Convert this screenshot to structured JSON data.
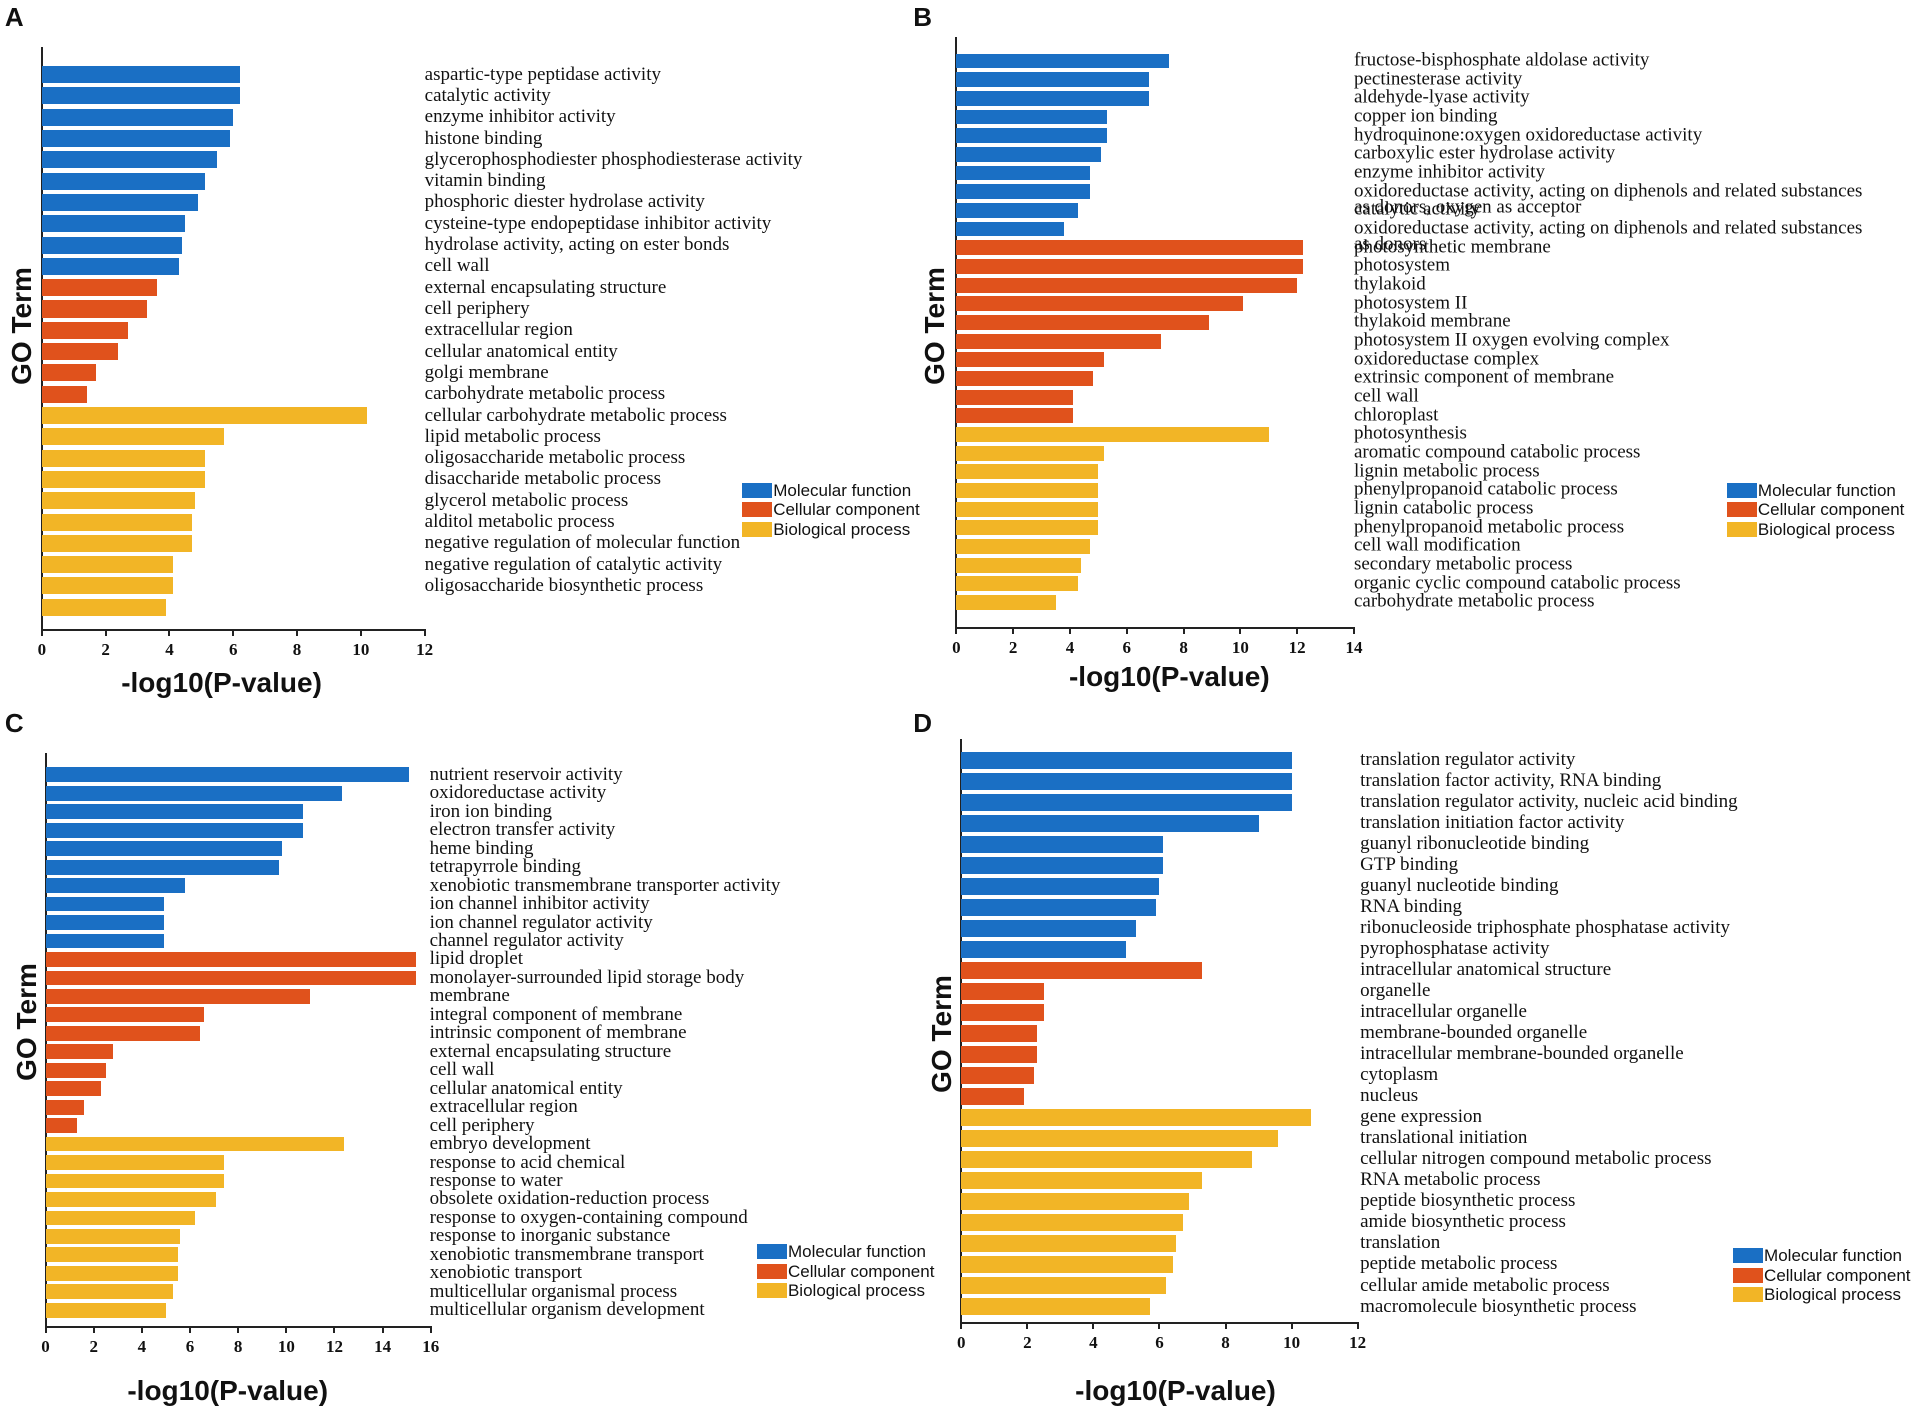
{
  "chart_data": [
    {
      "type": "bar",
      "panel": "A",
      "ylabel": "GO Term",
      "xlabel": "-log10(P-value)",
      "xlim": [
        0,
        12
      ],
      "xticks": [
        0,
        2,
        4,
        6,
        8,
        10,
        12
      ],
      "series": [
        {
          "name": "Molecular function",
          "color": "#1a6fc4",
          "categories": [
            "aspartic-type peptidase activity",
            "catalytic activity",
            "enzyme inhibitor activity",
            "histone binding",
            "glycerophosphodiester phosphodiesterase activity",
            "vitamin binding",
            "phosphoric diester hydrolase activity",
            "cysteine-type endopeptidase inhibitor activity",
            "hydrolase activity, acting on ester bonds",
            "cell wall"
          ],
          "values": [
            6.2,
            6.2,
            6.0,
            5.9,
            5.5,
            5.1,
            4.9,
            4.5,
            4.4,
            4.3
          ]
        },
        {
          "name": "Cellular component",
          "color": "#e0521c",
          "categories": [
            "external encapsulating structure",
            "cell periphery",
            "extracellular region",
            "cellular anatomical entity",
            "golgi membrane",
            "carbohydrate metabolic process"
          ],
          "values": [
            3.6,
            3.3,
            2.7,
            2.4,
            1.7,
            1.4
          ]
        },
        {
          "name": "Biological process",
          "color": "#f2b526",
          "categories": [
            "cellular carbohydrate metabolic process",
            "lipid metabolic process",
            "oligosaccharide metabolic process",
            "disaccharide metabolic process",
            "glycerol metabolic process",
            "alditol metabolic process",
            "negative regulation of molecular function",
            "negative regulation of catalytic activity",
            "oligosaccharide biosynthetic process",
            null
          ],
          "values": [
            10.2,
            5.7,
            5.1,
            5.1,
            4.8,
            4.7,
            4.7,
            4.1,
            4.1,
            3.9
          ]
        }
      ]
    },
    {
      "type": "bar",
      "panel": "B",
      "ylabel": "GO Term",
      "xlabel": "-log10(P-value)",
      "xlim": [
        0,
        14
      ],
      "xticks": [
        0,
        2,
        4,
        6,
        8,
        10,
        12,
        14
      ],
      "series": [
        {
          "name": "Molecular function",
          "color": "#1a6fc4",
          "categories": [
            "fructose-bisphosphate aldolase activity",
            "pectinesterase activity",
            "aldehyde-lyase activity",
            "copper ion binding",
            "hydroquinone:oxygen oxidoreductase activity",
            "carboxylic ester hydrolase activity",
            "enzyme inhibitor activity",
            "oxidoreductase activity, acting on diphenols and related substances as donors, oxygen as acceptor",
            "catalytic activity",
            "oxidoreductase activity, acting on diphenols and related substances as donors"
          ],
          "values": [
            7.5,
            6.8,
            6.8,
            5.3,
            5.3,
            5.1,
            4.7,
            4.7,
            4.3,
            3.8
          ]
        },
        {
          "name": "Cellular component",
          "color": "#e0521c",
          "categories": [
            "photosynthetic membrane",
            "photosystem",
            "thylakoid",
            "photosystem II",
            "thylakoid membrane",
            "photosystem II oxygen evolving complex",
            "oxidoreductase complex",
            "extrinsic component of membrane",
            "cell wall",
            "chloroplast"
          ],
          "values": [
            12.2,
            12.2,
            12.0,
            10.1,
            8.9,
            7.2,
            5.2,
            4.8,
            4.1,
            4.1
          ]
        },
        {
          "name": "Biological process",
          "color": "#f2b526",
          "categories": [
            "photosynthesis",
            "aromatic compound catabolic process",
            "lignin metabolic process",
            "phenylpropanoid catabolic process",
            "lignin catabolic process",
            "phenylpropanoid metabolic process",
            "cell wall modification",
            "secondary metabolic process",
            "organic cyclic compound catabolic process",
            "carbohydrate metabolic process"
          ],
          "values": [
            11.0,
            5.2,
            5.0,
            5.0,
            5.0,
            5.0,
            4.7,
            4.4,
            4.3,
            3.5
          ]
        }
      ]
    },
    {
      "type": "bar",
      "panel": "C",
      "ylabel": "GO Term",
      "xlabel": "-log10(P-value)",
      "xlim": [
        0,
        16
      ],
      "xticks": [
        0,
        2,
        4,
        6,
        8,
        10,
        12,
        14,
        16
      ],
      "series": [
        {
          "name": "Molecular function",
          "color": "#1a6fc4",
          "categories": [
            "nutrient reservoir activity",
            "oxidoreductase activity",
            "iron ion binding",
            "electron transfer activity",
            "heme binding",
            "tetrapyrrole binding",
            "xenobiotic transmembrane transporter activity",
            "ion channel inhibitor activity",
            "ion channel regulator activity",
            "channel regulator activity"
          ],
          "values": [
            15.1,
            12.3,
            10.7,
            10.7,
            9.8,
            9.7,
            5.8,
            4.9,
            4.9,
            4.9
          ]
        },
        {
          "name": "Cellular component",
          "color": "#e0521c",
          "categories": [
            "lipid droplet",
            "monolayer-surrounded lipid storage body",
            "membrane",
            "integral component of membrane",
            "intrinsic component of membrane",
            "external encapsulating structure",
            "cell wall",
            "cellular anatomical entity",
            "extracellular region",
            "cell periphery"
          ],
          "values": [
            15.4,
            15.4,
            11.0,
            6.6,
            6.4,
            2.8,
            2.5,
            2.3,
            1.6,
            1.3
          ]
        },
        {
          "name": "Biological process",
          "color": "#f2b526",
          "categories": [
            "embryo development",
            "response to acid chemical",
            "response to water",
            "obsolete oxidation-reduction process",
            "response to oxygen-containing compound",
            "response to inorganic substance",
            "xenobiotic transmembrane transport",
            "xenobiotic transport",
            "multicellular organismal process",
            "multicellular organism development"
          ],
          "values": [
            12.4,
            7.4,
            7.4,
            7.1,
            6.2,
            5.6,
            5.5,
            5.5,
            5.3,
            5.0
          ]
        }
      ]
    },
    {
      "type": "bar",
      "panel": "D",
      "ylabel": "GO Term",
      "xlabel": "-log10(P-value)",
      "xlim": [
        0,
        12
      ],
      "xticks": [
        0,
        2,
        4,
        6,
        8,
        10,
        12
      ],
      "series": [
        {
          "name": "Molecular function",
          "color": "#1a6fc4",
          "categories": [
            "translation regulator activity",
            "translation factor activity, RNA binding",
            "translation regulator activity, nucleic acid binding",
            "translation initiation factor activity",
            "guanyl ribonucleotide binding",
            "GTP binding",
            "guanyl nucleotide binding",
            "RNA binding",
            "ribonucleoside triphosphate phosphatase activity",
            "pyrophosphatase activity"
          ],
          "values": [
            10.0,
            10.0,
            10.0,
            9.0,
            6.1,
            6.1,
            6.0,
            5.9,
            5.3,
            5.0
          ]
        },
        {
          "name": "Cellular component",
          "color": "#e0521c",
          "categories": [
            "intracellular anatomical structure",
            "organelle",
            "intracellular organelle",
            "membrane-bounded organelle",
            "intracellular membrane-bounded organelle",
            "cytoplasm",
            "nucleus"
          ],
          "values": [
            7.3,
            2.5,
            2.5,
            2.3,
            2.3,
            2.2,
            1.9
          ]
        },
        {
          "name": "Biological process",
          "color": "#f2b526",
          "categories": [
            "gene expression",
            "translational initiation",
            "cellular nitrogen compound metabolic process",
            "RNA metabolic process",
            "peptide biosynthetic process",
            "amide biosynthetic process",
            "translation",
            "peptide metabolic process",
            "cellular amide metabolic process",
            "macromolecule biosynthetic process"
          ],
          "values": [
            10.6,
            9.6,
            8.8,
            7.3,
            6.9,
            6.7,
            6.5,
            6.4,
            6.2,
            5.7
          ]
        }
      ]
    }
  ]
}
